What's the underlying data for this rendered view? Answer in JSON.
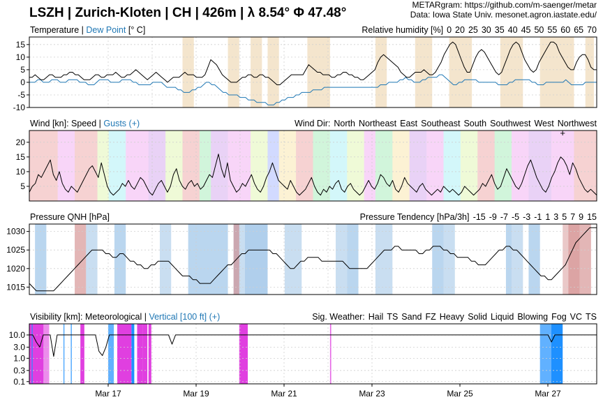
{
  "header": {
    "title": "LSZH | Zurich-Kloten | CH | 426m | λ 8.54° Φ 47.48°",
    "credit_line1": "METARgram: https://github.com/m-saenger/metar",
    "credit_line2": "Data: Iowa State Univ. mesonet.agron.iastate.edu/"
  },
  "colors": {
    "temperature": "#000000",
    "dew_point": "#1f77b4",
    "gusts": "#4169e1",
    "humidity_band": "#e6c690",
    "pressure_rise": "#c0504d",
    "pressure_fall": "#9dc3e6",
    "precip": "#ff00ff",
    "heavy_blue": "#1e90ff"
  },
  "chart_data": [
    {
      "type": "line",
      "panel": "temperature",
      "label_prefix": "Temperature",
      "label_sep": " | ",
      "label_series": "Dew Point",
      "label_unit": " [° C]",
      "legend_title": "Relative humidity [%]",
      "legend_values": [
        "0",
        "20",
        "25",
        "30",
        "35",
        "40",
        "45",
        "50",
        "55",
        "60",
        "65",
        "70"
      ],
      "yticks": [
        "15",
        "10",
        "5",
        "0",
        "-5",
        "-10"
      ],
      "ylim": [
        -10,
        18
      ],
      "x_range_days": [
        0,
        13
      ],
      "series": [
        {
          "values": [
            2,
            2,
            3,
            2,
            1,
            1,
            2,
            3,
            3,
            2,
            2,
            2,
            3,
            3,
            4,
            4,
            3,
            3,
            2,
            1,
            1,
            1,
            2,
            3,
            3,
            2,
            2,
            3,
            3,
            3,
            4,
            3,
            2,
            2,
            3,
            3,
            4,
            5,
            4,
            3,
            2,
            1,
            2,
            3,
            4,
            3,
            2,
            1,
            0,
            1,
            2,
            2,
            2,
            3,
            4,
            3,
            3,
            3,
            2,
            2,
            2,
            3,
            6,
            9,
            8,
            7,
            5,
            3,
            2,
            1,
            0,
            0,
            0,
            1,
            2,
            2,
            3,
            3,
            2,
            2,
            3,
            3,
            2,
            2,
            1,
            0,
            -1,
            -1,
            0,
            1,
            2,
            3,
            3,
            3,
            3,
            3,
            5,
            7,
            6,
            5,
            4,
            4,
            3,
            3,
            3,
            2,
            2,
            3,
            3,
            4,
            4,
            3,
            3,
            2,
            2,
            1,
            1,
            2,
            3,
            4,
            5,
            8,
            10,
            11,
            10,
            9,
            8,
            7,
            6,
            4,
            3,
            2,
            2,
            3,
            4,
            4,
            4,
            5,
            4,
            3,
            3,
            4,
            6,
            8,
            11,
            13,
            15,
            16,
            15,
            12,
            9,
            6,
            4,
            4,
            7,
            10,
            12,
            13,
            12,
            10,
            8,
            6,
            4,
            3,
            4,
            7,
            10,
            13,
            15,
            16,
            15,
            12,
            9,
            7,
            5,
            4,
            5,
            8,
            10,
            12,
            14,
            16,
            16,
            15,
            12,
            10,
            8,
            6,
            5,
            5,
            8,
            10,
            11,
            11,
            9,
            6,
            5,
            5
          ]
        },
        {
          "values": [
            0,
            0,
            0,
            1,
            1,
            0,
            0,
            0,
            1,
            1,
            1,
            0,
            0,
            0,
            1,
            1,
            1,
            1,
            0,
            0,
            0,
            -1,
            -1,
            -1,
            0,
            1,
            1,
            1,
            1,
            0,
            0,
            0,
            0,
            1,
            1,
            1,
            1,
            0,
            0,
            -1,
            -1,
            -1,
            -1,
            -1,
            0,
            0,
            0,
            0,
            -1,
            -2,
            -2,
            -2,
            -2,
            -3,
            -3,
            -4,
            -4,
            -4,
            -3,
            -3,
            -2,
            -2,
            -1,
            0,
            0,
            -1,
            -1,
            -2,
            -3,
            -4,
            -4,
            -5,
            -5,
            -5,
            -5,
            -6,
            -6,
            -6,
            -7,
            -7,
            -7,
            -8,
            -8,
            -8,
            -8,
            -9,
            -9,
            -9,
            -8,
            -8,
            -7,
            -7,
            -6,
            -6,
            -6,
            -5,
            -5,
            -4,
            -4,
            -4,
            -4,
            -3,
            -3,
            -3,
            -3,
            -2,
            -2,
            -2,
            -2,
            -2,
            -2,
            -2,
            -2,
            -2,
            -2,
            -2,
            -2,
            -2,
            -2,
            -2,
            -2,
            -2,
            -2,
            -2,
            -2,
            -1,
            -1,
            -1,
            0,
            0,
            0,
            0,
            1,
            1,
            2,
            1,
            1,
            0,
            0,
            0,
            1,
            1,
            2,
            2,
            2,
            2,
            3,
            3,
            2,
            1,
            0,
            -1,
            -1,
            0,
            0,
            1,
            1,
            1,
            1,
            1,
            0,
            0,
            0,
            0,
            0,
            0,
            0,
            -1,
            -1,
            -1,
            -1,
            0,
            0,
            1,
            1,
            1,
            1,
            1,
            1,
            0,
            0,
            -1,
            -1,
            -1,
            0,
            0,
            0,
            0,
            0,
            0,
            0,
            1,
            0,
            -1,
            -1,
            -1,
            -1,
            -1,
            0,
            0,
            0,
            0,
            0
          ]
        }
      ]
    },
    {
      "type": "line",
      "panel": "wind",
      "label_prefix": "Wind [kn]: Speed",
      "label_sep": " | ",
      "label_series": "Gusts (+)",
      "legend_title": "Wind Dir:",
      "legend_values": [
        "North",
        "Northeast",
        "East",
        "Southeast",
        "South",
        "Southwest",
        "West",
        "Northwest"
      ],
      "legend_colors": [
        "#3355ff",
        "#35d9e8",
        "#2fd05a",
        "#b6e84a",
        "#f0c23a",
        "#d43030",
        "#e03fe0",
        "#9930d8"
      ],
      "yticks": [
        "20",
        "15",
        "10",
        "5"
      ],
      "ylim": [
        0,
        24
      ],
      "series": [
        {
          "values": [
            3,
            5,
            6,
            9,
            8,
            10,
            12,
            14,
            9,
            7,
            10,
            6,
            4,
            3,
            5,
            4,
            3,
            5,
            7,
            9,
            11,
            12,
            10,
            8,
            13,
            9,
            5,
            3,
            2,
            3,
            4,
            6,
            5,
            7,
            5,
            4,
            6,
            8,
            7,
            5,
            3,
            2,
            4,
            6,
            7,
            5,
            3,
            5,
            9,
            11,
            7,
            5,
            4,
            6,
            7,
            5,
            6,
            4,
            5,
            7,
            9,
            8,
            12,
            16,
            11,
            8,
            13,
            7,
            5,
            3,
            4,
            6,
            5,
            7,
            9,
            6,
            4,
            3,
            5,
            8,
            10,
            13,
            10,
            7,
            6,
            5,
            4,
            7,
            5,
            3,
            2,
            3,
            4,
            6,
            8,
            5,
            3,
            2,
            4,
            3,
            5,
            4,
            6,
            7,
            4,
            3,
            5,
            6,
            4,
            3,
            2,
            3,
            5,
            7,
            5,
            4,
            6,
            9,
            8,
            6,
            5,
            7,
            4,
            3,
            5,
            8,
            6,
            5,
            4,
            3,
            5,
            6,
            4,
            3,
            2,
            3,
            4,
            3,
            5,
            4,
            3,
            4,
            3,
            2,
            3,
            5,
            4,
            3,
            2,
            3,
            4,
            6,
            5,
            7,
            9,
            6,
            4,
            5,
            8,
            11,
            9,
            7,
            5,
            4,
            6,
            9,
            12,
            14,
            11,
            8,
            6,
            4,
            3,
            5,
            8,
            10,
            13,
            15,
            14,
            12,
            9,
            13,
            11,
            8,
            6,
            4,
            3,
            4,
            3,
            2
          ]
        },
        {
          "values": [
            23
          ]
        }
      ]
    },
    {
      "type": "line",
      "panel": "pressure",
      "label_prefix": "Pressure QNH [hPa]",
      "legend_title": "Pressure Tendency [hPa/3h]",
      "legend_values": [
        "-15",
        "-9",
        "-7",
        "-5",
        "-3",
        "-1",
        "1",
        "3",
        "5",
        "7",
        "9",
        "15"
      ],
      "legend_colors": [
        "#5b9bd5",
        "#6fa8dc",
        "#82b5e2",
        "#9dc3e6",
        "#b7d4ee",
        "#d0e3f5",
        "#f0d6d6",
        "#e6b7b7",
        "#d99a9a",
        "#cc7a7a",
        "#bf5a5a",
        "#b03a3a"
      ],
      "yticks": [
        "1030",
        "1025",
        "1020",
        "1015"
      ],
      "ylim": [
        1013,
        1032
      ],
      "series": [
        {
          "values": [
            1016,
            1015,
            1014,
            1014,
            1014,
            1014,
            1014,
            1014,
            1015,
            1016,
            1017,
            1018,
            1019,
            1020,
            1021,
            1022,
            1023,
            1024,
            1025,
            1025,
            1025,
            1025,
            1024,
            1024,
            1023,
            1023,
            1024,
            1024,
            1023,
            1022,
            1022,
            1021,
            1021,
            1020,
            1020,
            1021,
            1021,
            1022,
            1022,
            1022,
            1022,
            1021,
            1020,
            1019,
            1018,
            1018,
            1018,
            1017,
            1017,
            1016,
            1016,
            1016,
            1016,
            1017,
            1018,
            1019,
            1020,
            1021,
            1021,
            1022,
            1023,
            1024,
            1024,
            1025,
            1025,
            1025,
            1025,
            1025,
            1025,
            1025,
            1024,
            1024,
            1023,
            1022,
            1021,
            1020,
            1020,
            1021,
            1022,
            1022,
            1023,
            1023,
            1023,
            1023,
            1022,
            1022,
            1022,
            1022,
            1022,
            1022,
            1022,
            1021,
            1020,
            1020,
            1020,
            1020,
            1020,
            1020,
            1021,
            1022,
            1023,
            1024,
            1025,
            1025,
            1025,
            1026,
            1026,
            1025,
            1025,
            1025,
            1025,
            1025,
            1024,
            1024,
            1025,
            1025,
            1026,
            1026,
            1026,
            1025,
            1025,
            1024,
            1024,
            1023,
            1023,
            1023,
            1023,
            1022,
            1022,
            1021,
            1021,
            1021,
            1022,
            1023,
            1024,
            1025,
            1025,
            1026,
            1026,
            1025,
            1025,
            1024,
            1023,
            1022,
            1021,
            1020,
            1019,
            1018,
            1018,
            1017,
            1017,
            1018,
            1019,
            1020,
            1021,
            1023,
            1025,
            1027,
            1028,
            1029,
            1030,
            1031,
            1031,
            1031
          ]
        }
      ]
    },
    {
      "type": "line",
      "panel": "visibility",
      "label_prefix": "Visibility [km]: Meteorological",
      "label_sep": " | ",
      "label_series": "Vertical [100 ft] (+)",
      "legend_title": "Sig. Weather:",
      "legend_values": [
        "Hail",
        "TS",
        "Sand",
        "FZ",
        "Heavy",
        "Solid",
        "Liquid",
        "Blowing",
        "Fog",
        "VC",
        "TS"
      ],
      "legend_colors": [
        "#f4a13a",
        "#d43030",
        "#e06666",
        "#f4a6c8",
        "#1c1c9c",
        "#e03fe0",
        "#1e90ff",
        "#7fdc7f",
        "#555555",
        "#cc0000",
        "#cc0000"
      ],
      "yticks": [
        "10.0",
        "3.0",
        "1.0",
        "0.3",
        "0.1"
      ],
      "log_scale": true,
      "ylim": [
        0.08,
        30
      ],
      "x_tick_labels": [
        "Mar 17",
        "Mar 19",
        "Mar 21",
        "Mar 23",
        "Mar 25",
        "Mar 27"
      ],
      "series": [
        {
          "values": [
            10,
            10,
            5,
            3,
            10,
            10,
            10,
            1.2,
            10,
            10,
            10,
            10,
            10,
            10,
            10,
            10,
            10,
            10,
            10,
            10,
            2,
            1.3,
            3,
            10,
            10,
            10,
            10,
            10,
            10,
            10,
            10,
            10,
            10,
            10,
            10,
            10,
            10,
            10,
            10,
            10,
            10,
            4,
            10,
            10,
            10,
            10,
            10,
            10,
            10,
            10,
            10,
            10,
            10,
            10,
            10,
            10,
            10,
            10,
            10,
            10,
            10,
            10,
            10,
            10,
            10,
            10,
            10,
            10,
            10,
            10,
            10,
            10,
            10,
            10,
            10,
            10,
            10,
            10,
            10,
            10,
            10,
            10,
            10,
            10,
            10,
            10,
            10,
            10,
            10,
            10,
            10,
            10,
            10,
            10,
            10,
            10,
            10,
            10,
            10,
            10,
            10,
            10,
            10,
            10,
            10,
            10,
            10,
            10,
            10,
            10,
            10,
            10,
            10,
            10,
            10,
            10,
            10,
            10,
            10,
            10,
            10,
            10,
            10,
            10,
            10,
            10,
            10,
            10,
            10,
            10,
            10,
            10,
            10,
            10,
            10,
            10,
            10,
            10,
            10,
            10,
            10,
            10,
            10,
            10,
            10,
            10,
            10,
            10,
            10,
            10,
            5,
            10,
            10,
            10,
            10,
            10,
            10,
            10,
            10,
            10,
            10,
            10,
            10,
            10
          ]
        }
      ]
    }
  ]
}
